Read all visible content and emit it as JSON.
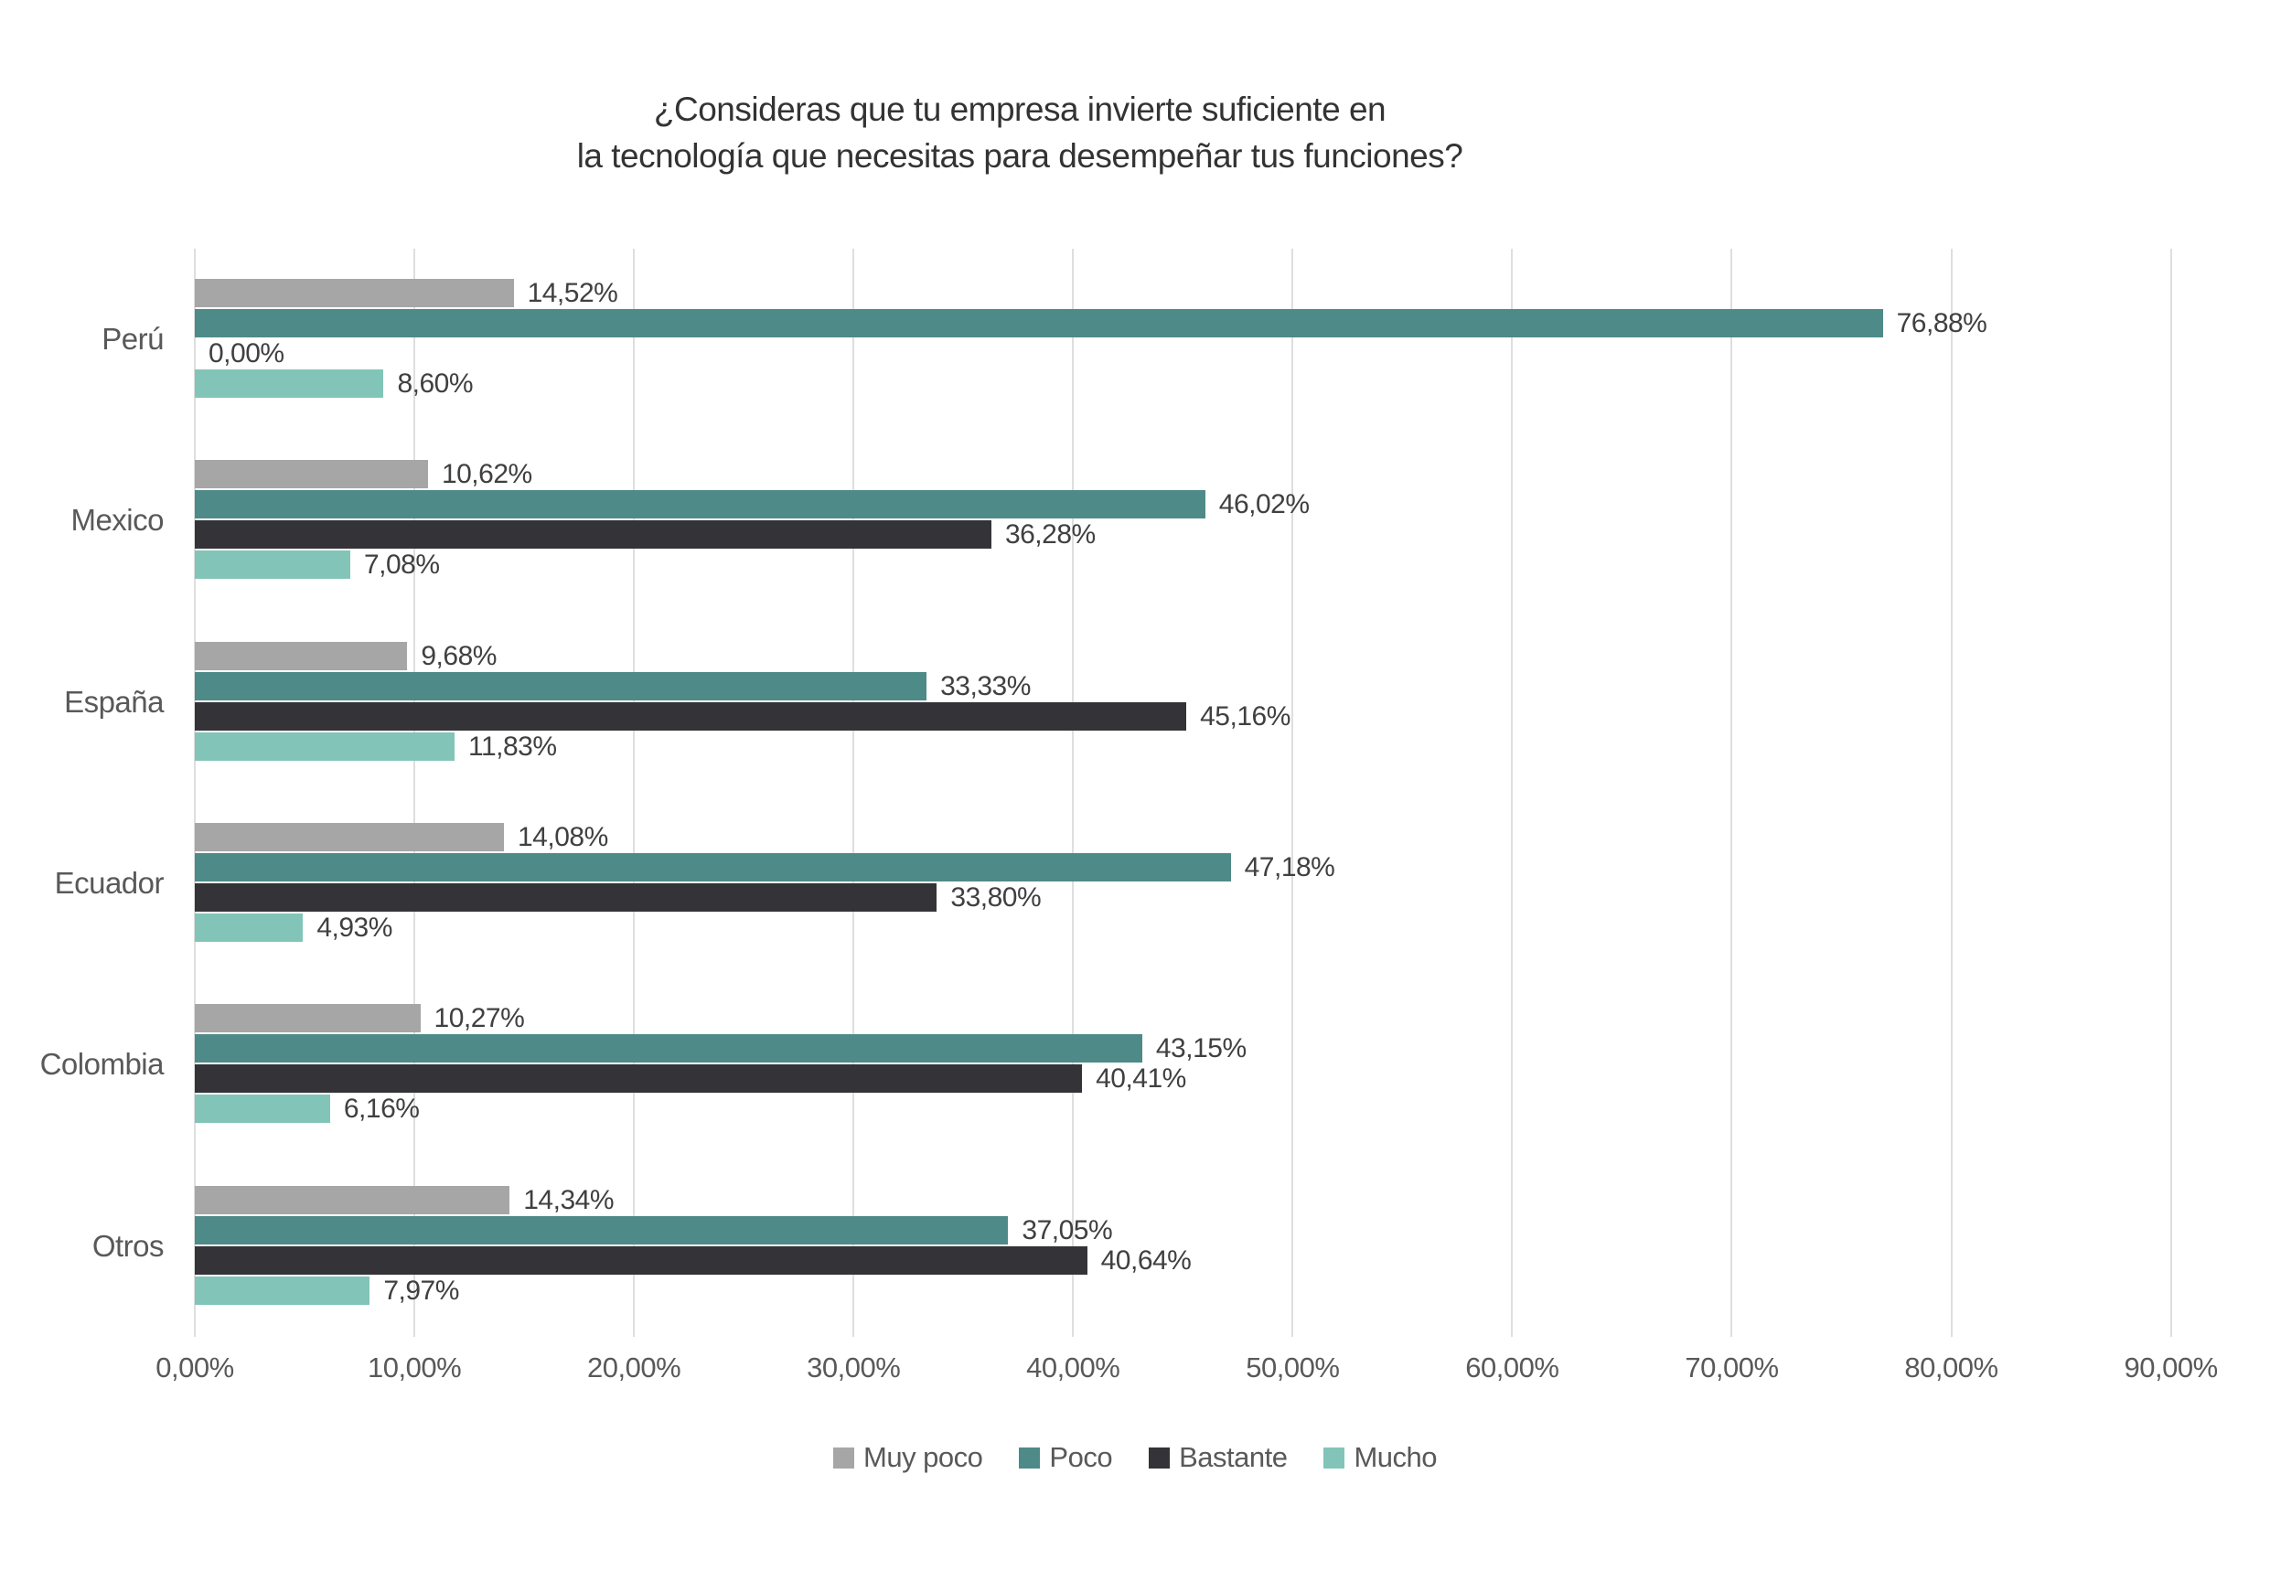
{
  "title": {
    "line1": "¿Consideras que tu empresa invierte suficiente en",
    "line2": "la tecnología que necesitas para desempeñar tus funciones?"
  },
  "colors": {
    "muy_poco": "#a6a6a6",
    "poco": "#4e8a88",
    "bastante": "#333338",
    "mucho": "#82c5b8",
    "gridline": "#dedede",
    "value_label_text": "#404040",
    "axis_text": "#595959"
  },
  "chart_data": {
    "type": "bar",
    "orientation": "horizontal",
    "title": "¿Consideras que tu empresa invierte suficiente en la tecnología que necesitas para desempeñar tus funciones?",
    "categories": [
      "Perú",
      "Mexico",
      "España",
      "Ecuador",
      "Colombia",
      "Otros"
    ],
    "series": [
      {
        "name": "Muy poco",
        "color": "#a6a6a6",
        "values": [
          14.52,
          10.62,
          9.68,
          14.08,
          10.27,
          14.34
        ],
        "labels": [
          "14,52%",
          "10,62%",
          "9,68%",
          "14,08%",
          "10,27%",
          "14,34%"
        ]
      },
      {
        "name": "Poco",
        "color": "#4e8a88",
        "values": [
          76.88,
          46.02,
          33.33,
          47.18,
          43.15,
          37.05
        ],
        "labels": [
          "76,88%",
          "46,02%",
          "33,33%",
          "47,18%",
          "43,15%",
          "37,05%"
        ]
      },
      {
        "name": "Bastante",
        "color": "#333338",
        "values": [
          0.0,
          36.28,
          45.16,
          33.8,
          40.41,
          40.64
        ],
        "labels": [
          "0,00%",
          "36,28%",
          "45,16%",
          "33,80%",
          "40,41%",
          "40,64%"
        ]
      },
      {
        "name": "Mucho",
        "color": "#82c5b8",
        "values": [
          8.6,
          7.08,
          11.83,
          4.93,
          6.16,
          7.97
        ],
        "labels": [
          "8,60%",
          "7,08%",
          "11,83%",
          "4,93%",
          "6,16%",
          "7,97%"
        ]
      }
    ],
    "x_axis": {
      "ticks": [
        "0,00%",
        "10,00%",
        "20,00%",
        "30,00%",
        "40,00%",
        "50,00%",
        "60,00%",
        "70,00%",
        "80,00%",
        "90,00%"
      ],
      "tick_values": [
        0,
        10,
        20,
        30,
        40,
        50,
        60,
        70,
        80,
        90
      ],
      "max": 93.6
    },
    "xlim": [
      0,
      93.6
    ],
    "grid": true,
    "legend_position": "bottom"
  }
}
